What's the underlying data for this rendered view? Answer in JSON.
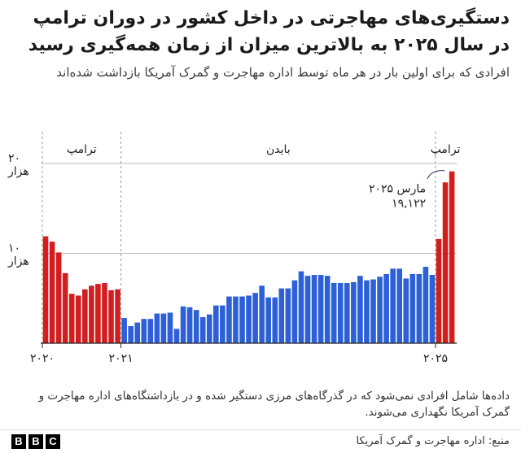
{
  "header": {
    "title": "دستگیری‌های مهاجرتی در داخل کشور در دوران ترامپ در سال ۲۰۲۵ به بالاترین میزان از زمان همه‌گیری رسید",
    "subtitle": "افرادی که برای اولین بار در هر ماه توسط اداره مهاجرت و گمرک آمریکا بازداشت شده‌اند"
  },
  "chart_data": {
    "type": "bar",
    "title": "دستگیری‌های مهاجرتی در داخل کشور در دوران ترامپ در سال ۲۰۲۵ به بالاترین میزان از زمان همه‌گیری رسید",
    "ylabel": "",
    "xlabel": "",
    "ylim": [
      0,
      21000
    ],
    "yticks": [
      {
        "value": 10000,
        "label_num": "۱۰",
        "label_unit": "هزار"
      },
      {
        "value": 20000,
        "label_num": "۲۰",
        "label_unit": "هزار"
      }
    ],
    "xticks": [
      {
        "index": 0,
        "label": "۲۰۲۰"
      },
      {
        "index": 12,
        "label": "۲۰۲۱"
      },
      {
        "index": 60,
        "label": "۲۰۲۵"
      }
    ],
    "periods": [
      {
        "label": "ترامپ",
        "start": 0,
        "end": 12,
        "color": "#d11f1f"
      },
      {
        "label": "بایدن",
        "start": 12,
        "end": 60,
        "color": "#2d5fd6"
      },
      {
        "label": "ترامپ",
        "start": 60,
        "end": 63,
        "color": "#d11f1f"
      }
    ],
    "colors": {
      "trump": "#d11f1f",
      "biden": "#2d5fd6"
    },
    "series": [
      {
        "name": "ترامپ",
        "color": "#d11f1f",
        "start_index": 0,
        "values": [
          11900,
          11300,
          10100,
          7800,
          5500,
          5300,
          6000,
          6400,
          6600,
          6700,
          5900,
          6000
        ]
      },
      {
        "name": "بایدن",
        "color": "#2d5fd6",
        "start_index": 12,
        "values": [
          2800,
          1900,
          2300,
          2700,
          2700,
          3300,
          3300,
          3400,
          1600,
          4100,
          4000,
          3700,
          2900,
          3200,
          4200,
          4200,
          5200,
          5200,
          5200,
          5300,
          5600,
          6400,
          5100,
          5100,
          6100,
          6100,
          7000,
          8000,
          7500,
          7600,
          7600,
          7500,
          6700,
          6700,
          6700,
          6800,
          7500,
          7000,
          7100,
          7400,
          7700,
          8300,
          8300,
          7200,
          7700,
          7700,
          8500,
          7600
        ]
      },
      {
        "name": "ترامپ",
        "color": "#d11f1f",
        "start_index": 60,
        "values": [
          11600,
          17900,
          19122
        ]
      }
    ],
    "annotation": {
      "label": "مارس ۲۰۲۵",
      "value_text": "۱۹,۱۲۲",
      "index": 62,
      "value": 19122
    }
  },
  "footnote": "داده‌ها شامل افرادی نمی‌شود که در گذرگاه‌های مرزی دستگیر شده و در بازداشتگاه‌های اداره مهاجرت و گمرک آمریکا  نگهداری می‌شوند.",
  "footer": {
    "source": "منبع: اداره مهاجرت و گمرک آمریکا",
    "logo_letters": [
      "B",
      "B",
      "C"
    ]
  }
}
